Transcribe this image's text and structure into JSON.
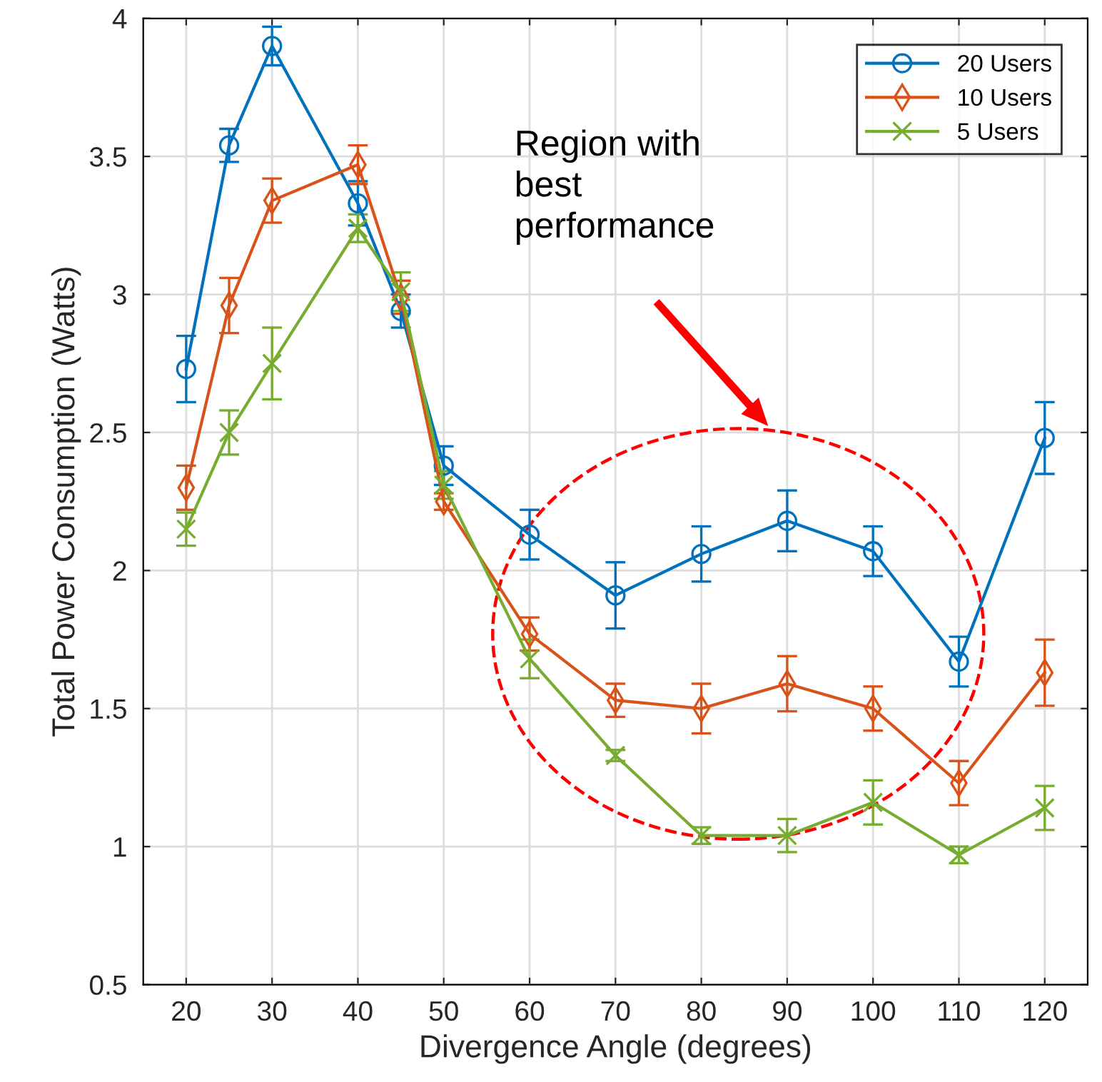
{
  "chart_data": {
    "type": "line",
    "xlabel": "Divergence Angle (degrees)",
    "ylabel": "Total Power Consumption (Watts)",
    "x": [
      20,
      25,
      30,
      40,
      45,
      50,
      60,
      70,
      80,
      90,
      100,
      110,
      120
    ],
    "series": [
      {
        "name": "20 Users",
        "color": "#0072bd",
        "marker": "circle",
        "values": [
          2.73,
          3.54,
          3.9,
          3.33,
          2.94,
          2.38,
          2.13,
          1.91,
          2.06,
          2.18,
          2.07,
          1.67,
          2.48
        ],
        "errors": [
          0.12,
          0.06,
          0.07,
          0.08,
          0.06,
          0.07,
          0.09,
          0.12,
          0.1,
          0.11,
          0.09,
          0.09,
          0.13
        ]
      },
      {
        "name": "10 Users",
        "color": "#d95319",
        "marker": "diamond",
        "values": [
          2.3,
          2.96,
          3.34,
          3.47,
          2.99,
          2.25,
          1.77,
          1.53,
          1.5,
          1.59,
          1.5,
          1.23,
          1.63
        ],
        "errors": [
          0.08,
          0.1,
          0.08,
          0.07,
          0.06,
          0.03,
          0.06,
          0.06,
          0.09,
          0.1,
          0.08,
          0.08,
          0.12
        ]
      },
      {
        "name": "5 Users",
        "color": "#77ac30",
        "marker": "cross",
        "values": [
          2.15,
          2.5,
          2.75,
          3.24,
          3.01,
          2.31,
          1.68,
          1.33,
          1.04,
          1.04,
          1.16,
          0.97,
          1.14
        ],
        "errors": [
          0.06,
          0.08,
          0.13,
          0.05,
          0.07,
          0.05,
          0.07,
          0.02,
          0.03,
          0.06,
          0.08,
          0.03,
          0.08
        ]
      }
    ],
    "xlim": [
      15,
      125
    ],
    "xticks": [
      20,
      30,
      40,
      50,
      60,
      70,
      80,
      90,
      100,
      110,
      120
    ],
    "ylim": [
      0.5,
      4
    ],
    "yticks": [
      0.5,
      1,
      1.5,
      2,
      2.5,
      3,
      3.5,
      4
    ],
    "grid": true,
    "legend": "top right",
    "annotations": [
      "Region with\nbest\nperformance"
    ]
  }
}
